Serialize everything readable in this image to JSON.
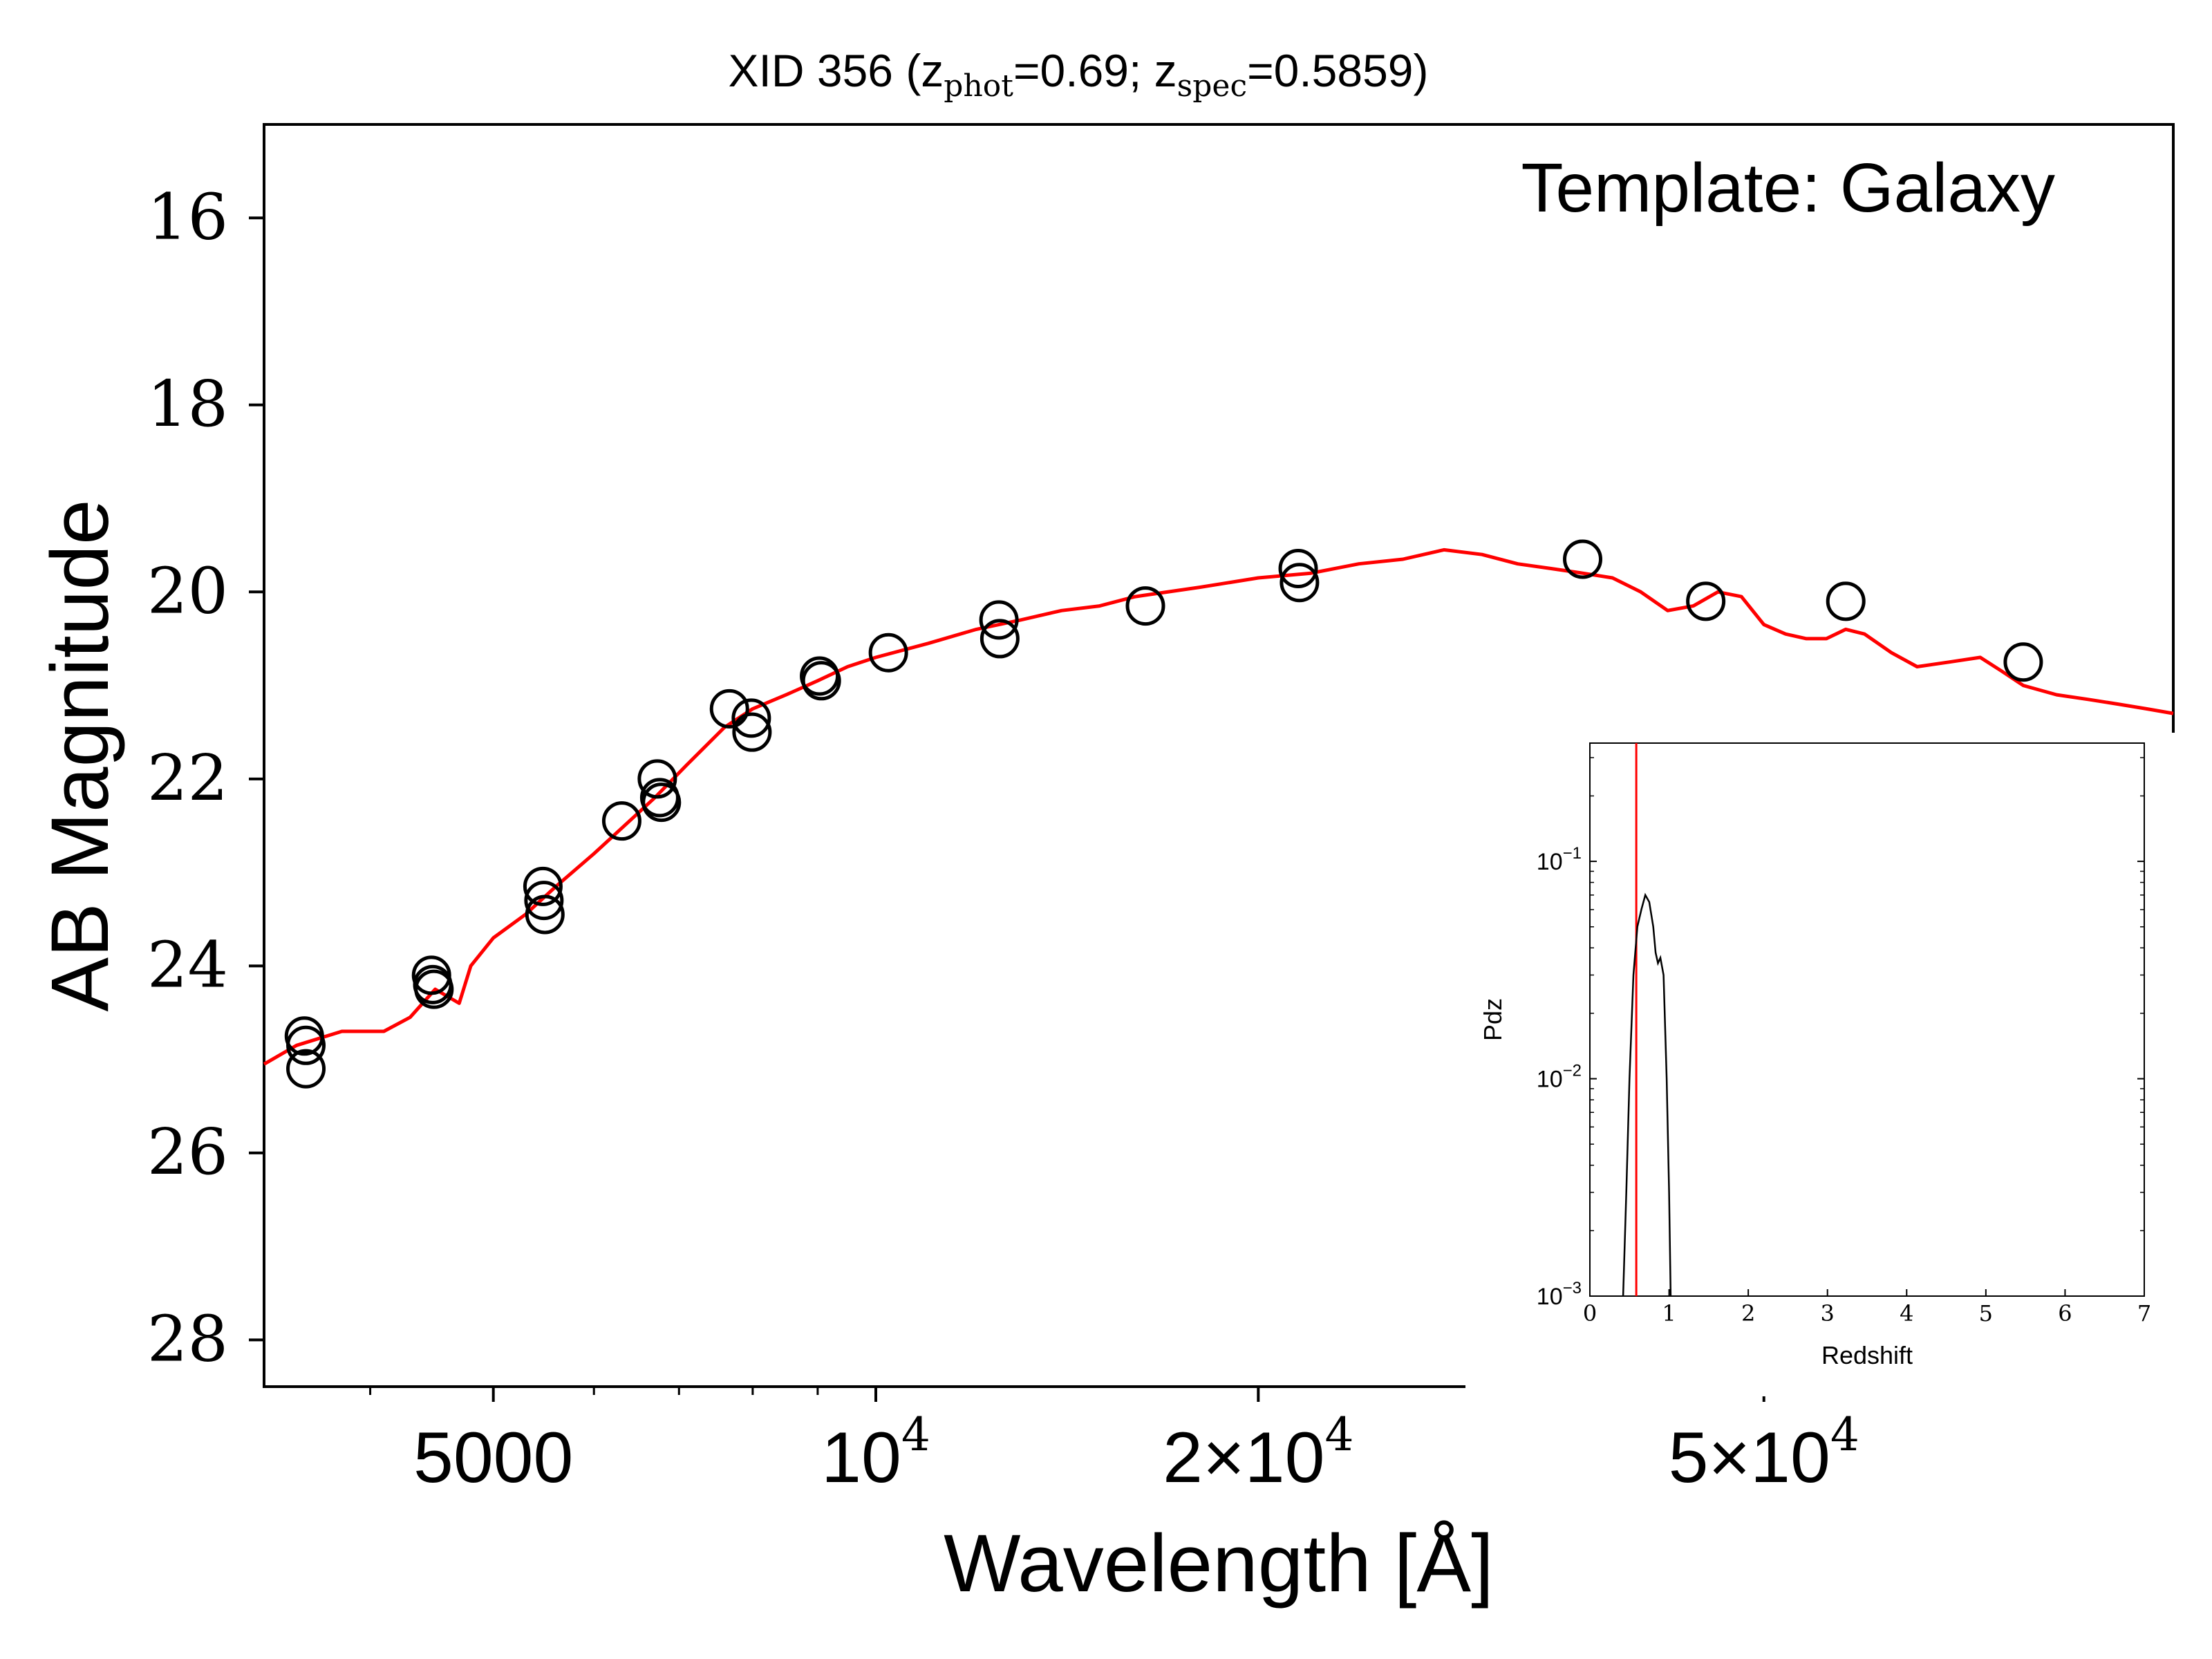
{
  "chart_data": {
    "type": "scatter",
    "title": {
      "prefix": "XID 356 (z",
      "sub1": "phot",
      "mid": "=0.69; z",
      "sub2": "spec",
      "suffix": "=0.5859)"
    },
    "annotation": "Template: Galaxy",
    "xlabel": "Wavelength [Å]",
    "ylabel": "AB Magnitude",
    "x_scale": "log",
    "xlim": [
      3300,
      105000
    ],
    "ylim": [
      28.5,
      15.0
    ],
    "y_inverted": true,
    "x_ticks": [
      {
        "value": 5000,
        "base": "5000",
        "exp": ""
      },
      {
        "value": 10000,
        "base": "10",
        "exp": "4"
      },
      {
        "value": 20000,
        "base": "2×10",
        "exp": "4"
      },
      {
        "value": 50000,
        "base": "5×10",
        "exp": "4"
      }
    ],
    "y_ticks": [
      "16",
      "18",
      "20",
      "22",
      "24",
      "26",
      "28"
    ],
    "grid": false,
    "series": [
      {
        "kind": "photometry",
        "marker": "open-circle",
        "color": "#000000",
        "points": [
          {
            "x": 3550,
            "y": 24.75
          },
          {
            "x": 3560,
            "y": 24.85
          },
          {
            "x": 3560,
            "y": 25.1
          },
          {
            "x": 4470,
            "y": 24.1
          },
          {
            "x": 4480,
            "y": 24.2
          },
          {
            "x": 4490,
            "y": 24.25
          },
          {
            "x": 5470,
            "y": 23.15
          },
          {
            "x": 5480,
            "y": 23.3
          },
          {
            "x": 5490,
            "y": 23.45
          },
          {
            "x": 6310,
            "y": 22.45
          },
          {
            "x": 6730,
            "y": 22.0
          },
          {
            "x": 6760,
            "y": 22.2
          },
          {
            "x": 6780,
            "y": 22.25
          },
          {
            "x": 7670,
            "y": 21.25
          },
          {
            "x": 7980,
            "y": 21.35
          },
          {
            "x": 7990,
            "y": 21.5
          },
          {
            "x": 9030,
            "y": 20.9
          },
          {
            "x": 9060,
            "y": 20.95
          },
          {
            "x": 10230,
            "y": 20.65
          },
          {
            "x": 12500,
            "y": 20.3
          },
          {
            "x": 12520,
            "y": 20.5
          },
          {
            "x": 16300,
            "y": 20.15
          },
          {
            "x": 21500,
            "y": 19.75
          },
          {
            "x": 21550,
            "y": 19.9
          },
          {
            "x": 36000,
            "y": 19.65
          },
          {
            "x": 45000,
            "y": 20.1
          },
          {
            "x": 58000,
            "y": 20.1
          },
          {
            "x": 80000,
            "y": 20.75
          }
        ]
      },
      {
        "kind": "template",
        "line": true,
        "color": "#ff0000",
        "points": [
          {
            "x": 3300,
            "y": 25.05
          },
          {
            "x": 3500,
            "y": 24.85
          },
          {
            "x": 3800,
            "y": 24.7
          },
          {
            "x": 4100,
            "y": 24.7
          },
          {
            "x": 4300,
            "y": 24.55
          },
          {
            "x": 4500,
            "y": 24.25
          },
          {
            "x": 4700,
            "y": 24.4
          },
          {
            "x": 4800,
            "y": 24.0
          },
          {
            "x": 5000,
            "y": 23.7
          },
          {
            "x": 5300,
            "y": 23.45
          },
          {
            "x": 5600,
            "y": 23.15
          },
          {
            "x": 6000,
            "y": 22.8
          },
          {
            "x": 6400,
            "y": 22.45
          },
          {
            "x": 6700,
            "y": 22.2
          },
          {
            "x": 7100,
            "y": 21.85
          },
          {
            "x": 7600,
            "y": 21.45
          },
          {
            "x": 8000,
            "y": 21.25
          },
          {
            "x": 8500,
            "y": 21.1
          },
          {
            "x": 9000,
            "y": 20.95
          },
          {
            "x": 9500,
            "y": 20.8
          },
          {
            "x": 10000,
            "y": 20.7
          },
          {
            "x": 11000,
            "y": 20.55
          },
          {
            "x": 12000,
            "y": 20.4
          },
          {
            "x": 13000,
            "y": 20.3
          },
          {
            "x": 14000,
            "y": 20.2
          },
          {
            "x": 15000,
            "y": 20.15
          },
          {
            "x": 16000,
            "y": 20.05
          },
          {
            "x": 18000,
            "y": 19.95
          },
          {
            "x": 20000,
            "y": 19.85
          },
          {
            "x": 22000,
            "y": 19.8
          },
          {
            "x": 24000,
            "y": 19.7
          },
          {
            "x": 26000,
            "y": 19.65
          },
          {
            "x": 28000,
            "y": 19.55
          },
          {
            "x": 30000,
            "y": 19.6
          },
          {
            "x": 32000,
            "y": 19.7
          },
          {
            "x": 34000,
            "y": 19.75
          },
          {
            "x": 36000,
            "y": 19.8
          },
          {
            "x": 38000,
            "y": 19.85
          },
          {
            "x": 40000,
            "y": 20.0
          },
          {
            "x": 42000,
            "y": 20.2
          },
          {
            "x": 44000,
            "y": 20.15
          },
          {
            "x": 46000,
            "y": 20.0
          },
          {
            "x": 48000,
            "y": 20.05
          },
          {
            "x": 50000,
            "y": 20.35
          },
          {
            "x": 52000,
            "y": 20.45
          },
          {
            "x": 54000,
            "y": 20.5
          },
          {
            "x": 56000,
            "y": 20.5
          },
          {
            "x": 58000,
            "y": 20.4
          },
          {
            "x": 60000,
            "y": 20.45
          },
          {
            "x": 63000,
            "y": 20.65
          },
          {
            "x": 66000,
            "y": 20.8
          },
          {
            "x": 70000,
            "y": 20.75
          },
          {
            "x": 74000,
            "y": 20.7
          },
          {
            "x": 77000,
            "y": 20.85
          },
          {
            "x": 80000,
            "y": 21.0
          },
          {
            "x": 85000,
            "y": 21.1
          },
          {
            "x": 90000,
            "y": 21.15
          },
          {
            "x": 95000,
            "y": 21.2
          },
          {
            "x": 100000,
            "y": 21.25
          },
          {
            "x": 105000,
            "y": 21.3
          }
        ]
      }
    ],
    "inset": {
      "type": "line",
      "xlabel": "Redshift",
      "ylabel": "Pdz",
      "xlim": [
        0,
        7
      ],
      "ylim": [
        0.001,
        0.35
      ],
      "y_scale": "log",
      "x_ticks": [
        "0",
        "1",
        "2",
        "3",
        "4",
        "5",
        "6",
        "7"
      ],
      "y_ticks": [
        {
          "value": 0.1,
          "base": "10",
          "exp": "−1"
        },
        {
          "value": 0.01,
          "base": "10",
          "exp": "−2"
        },
        {
          "value": 0.001,
          "base": "10",
          "exp": "−3"
        }
      ],
      "vline": {
        "x": 0.5859,
        "color": "#ff0000"
      },
      "curve_color": "#000000",
      "curve": [
        {
          "x": 0.42,
          "y": 0.001
        },
        {
          "x": 0.46,
          "y": 0.003
        },
        {
          "x": 0.5,
          "y": 0.01
        },
        {
          "x": 0.55,
          "y": 0.03
        },
        {
          "x": 0.6,
          "y": 0.05
        },
        {
          "x": 0.65,
          "y": 0.06
        },
        {
          "x": 0.7,
          "y": 0.07
        },
        {
          "x": 0.75,
          "y": 0.065
        },
        {
          "x": 0.8,
          "y": 0.05
        },
        {
          "x": 0.83,
          "y": 0.038
        },
        {
          "x": 0.86,
          "y": 0.034
        },
        {
          "x": 0.89,
          "y": 0.036
        },
        {
          "x": 0.93,
          "y": 0.03
        },
        {
          "x": 0.97,
          "y": 0.01
        },
        {
          "x": 1.0,
          "y": 0.003
        },
        {
          "x": 1.02,
          "y": 0.001
        }
      ]
    }
  }
}
